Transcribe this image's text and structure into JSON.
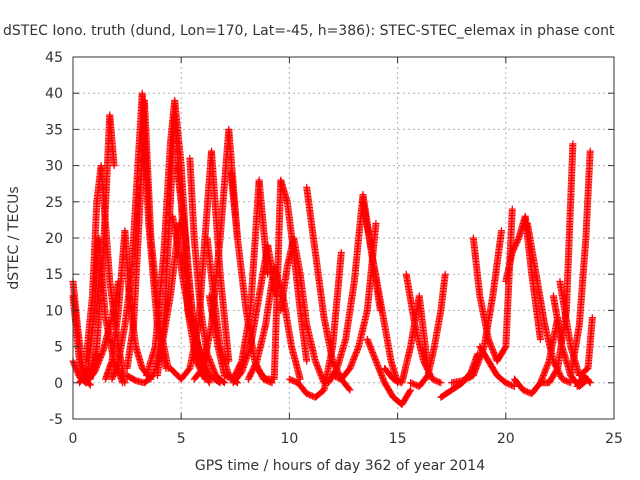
{
  "chart_data": {
    "type": "scatter",
    "title": "dSTEC Iono. truth (dund, Lon=170, Lat=-45, h=386): STEC-STEC_elemax in phase cont",
    "xlabel": "GPS time / hours of day 362 of year 2014",
    "ylabel": "dSTEC  / TECUs",
    "xlim": [
      0,
      25
    ],
    "ylim": [
      -5,
      45
    ],
    "xticks": [
      0,
      5,
      10,
      15,
      20,
      25
    ],
    "yticks": [
      -5,
      0,
      5,
      10,
      15,
      20,
      25,
      30,
      35,
      40,
      45
    ],
    "grid": true,
    "marker": "plus",
    "color": "#ff0000",
    "series": [
      {
        "x": [
          0.0,
          0.2,
          0.4,
          0.6,
          0.8
        ],
        "y": [
          14.0,
          8.0,
          3.0,
          0.3,
          -0.3
        ]
      },
      {
        "x": [
          0.0,
          0.3,
          0.6,
          0.9,
          1.1
        ],
        "y": [
          3.0,
          0.8,
          0.0,
          1.5,
          4.0
        ]
      },
      {
        "x": [
          0.0,
          0.3,
          0.6,
          1.0,
          1.4,
          1.8,
          2.1
        ],
        "y": [
          12.0,
          3.0,
          0.0,
          1.5,
          4.5,
          9.0,
          14.0
        ]
      },
      {
        "x": [
          0.3,
          0.7,
          1.0,
          1.2,
          1.5,
          1.9,
          2.3
        ],
        "y": [
          0.0,
          2.0,
          10.0,
          20.0,
          9.0,
          3.0,
          0.0
        ]
      },
      {
        "x": [
          0.6,
          0.9,
          1.1,
          1.3,
          1.7,
          2.1,
          2.4
        ],
        "y": [
          3.0,
          12.0,
          25.0,
          30.0,
          14.0,
          5.0,
          0.0
        ]
      },
      {
        "x": [
          0.8,
          1.1,
          1.4,
          1.7,
          1.9
        ],
        "y": [
          0.5,
          5.0,
          18.0,
          37.0,
          30.0
        ]
      },
      {
        "x": [
          1.5,
          1.8,
          2.1,
          2.4,
          2.6,
          2.9,
          3.2,
          3.6
        ],
        "y": [
          0.5,
          3.0,
          10.0,
          21.0,
          12.0,
          5.0,
          2.0,
          0.5
        ]
      },
      {
        "x": [
          1.8,
          2.1,
          2.4,
          2.7,
          3.0,
          3.2,
          3.5,
          3.9,
          4.3
        ],
        "y": [
          0.5,
          3.0,
          8.0,
          15.0,
          30.0,
          40.0,
          22.0,
          8.0,
          2.0
        ]
      },
      {
        "x": [
          2.5,
          2.8,
          3.1,
          3.3,
          3.6,
          4.0,
          4.4
        ],
        "y": [
          2.0,
          8.0,
          25.0,
          39.0,
          20.0,
          8.0,
          2.0
        ]
      },
      {
        "x": [
          2.5,
          2.9,
          3.3,
          3.7,
          4.1,
          4.5,
          4.9
        ],
        "y": [
          1.0,
          0.3,
          0.0,
          1.0,
          5.0,
          12.0,
          22.0
        ]
      },
      {
        "x": [
          3.4,
          3.8,
          4.2,
          4.5,
          4.7,
          5.0,
          5.3,
          5.7,
          6.0
        ],
        "y": [
          1.0,
          5.0,
          18.0,
          33.0,
          39.0,
          30.0,
          15.0,
          5.0,
          1.0
        ]
      },
      {
        "x": [
          3.9,
          4.2,
          4.5,
          4.7,
          5.0,
          5.3,
          5.7,
          6.1
        ],
        "y": [
          1.0,
          8.0,
          25.0,
          37.0,
          25.0,
          10.0,
          3.0,
          0.5
        ]
      },
      {
        "x": [
          4.6,
          4.9,
          5.1,
          5.4,
          5.8,
          6.3,
          6.8
        ],
        "y": [
          23.0,
          18.0,
          14.0,
          9.0,
          5.0,
          1.0,
          0.0
        ]
      },
      {
        "x": [
          4.8,
          5.2,
          5.5,
          5.9,
          6.3
        ],
        "y": [
          30.0,
          20.0,
          10.0,
          3.0,
          0.0
        ]
      },
      {
        "x": [
          4.5,
          5.0,
          5.4,
          5.8,
          6.1,
          6.4,
          6.8,
          7.2
        ],
        "y": [
          2.0,
          0.5,
          2.0,
          8.0,
          20.0,
          32.0,
          15.0,
          3.0
        ]
      },
      {
        "x": [
          5.4,
          5.6,
          5.9,
          6.2,
          6.6,
          7.0
        ],
        "y": [
          31.0,
          20.0,
          10.0,
          4.0,
          1.0,
          0.0
        ]
      },
      {
        "x": [
          5.6,
          6.0,
          6.4,
          6.8,
          7.2,
          7.6
        ],
        "y": [
          0.5,
          2.0,
          8.0,
          20.0,
          35.0,
          20.0
        ]
      },
      {
        "x": [
          6.2,
          6.5,
          6.8,
          7.2,
          7.6
        ],
        "y": [
          20.0,
          12.0,
          5.0,
          1.0,
          0.0
        ]
      },
      {
        "x": [
          6.3,
          6.7,
          7.0,
          7.4,
          7.8,
          8.2,
          8.6,
          9.0
        ],
        "y": [
          12.0,
          5.0,
          1.0,
          0.5,
          3.0,
          10.0,
          28.0,
          15.0
        ]
      },
      {
        "x": [
          7.3,
          7.6,
          8.0,
          8.4,
          8.8,
          9.2
        ],
        "y": [
          29.0,
          20.0,
          10.0,
          3.0,
          0.5,
          0.0
        ]
      },
      {
        "x": [
          7.4,
          7.8,
          8.2,
          8.6,
          9.0,
          9.4
        ],
        "y": [
          0.0,
          1.5,
          5.0,
          12.0,
          19.0,
          12.0
        ]
      },
      {
        "x": [
          8.1,
          8.5,
          8.9,
          9.3,
          9.7,
          10.1,
          10.5
        ],
        "y": [
          0.5,
          3.0,
          8.0,
          16.0,
          12.0,
          5.0,
          0.5
        ]
      },
      {
        "x": [
          8.5,
          8.9,
          9.3,
          9.6,
          9.9,
          10.2,
          10.5,
          10.8
        ],
        "y": [
          2.0,
          0.5,
          0.5,
          28.0,
          25.0,
          18.0,
          10.0,
          3.0
        ]
      },
      {
        "x": [
          9.6,
          9.9,
          10.2,
          10.5,
          10.8,
          11.2,
          11.6
        ],
        "y": [
          10.0,
          16.0,
          20.0,
          15.0,
          8.0,
          3.0,
          0.0
        ]
      },
      {
        "x": [
          10.0,
          10.4,
          10.8,
          11.2,
          11.6,
          12.0,
          12.4
        ],
        "y": [
          0.5,
          0.0,
          -1.5,
          -2.0,
          -1.0,
          5.0,
          18.0
        ]
      },
      {
        "x": [
          10.8,
          11.2,
          11.6,
          12.0,
          12.4,
          12.8
        ],
        "y": [
          27.0,
          18.0,
          9.0,
          3.0,
          0.5,
          -1.0
        ]
      },
      {
        "x": [
          11.8,
          12.2,
          12.6,
          13.0,
          13.4,
          13.8,
          14.2
        ],
        "y": [
          0.0,
          2.0,
          6.0,
          14.0,
          26.0,
          18.0,
          10.0
        ]
      },
      {
        "x": [
          12.0,
          12.4,
          12.8,
          13.2,
          13.6,
          14.0
        ],
        "y": [
          1.0,
          0.5,
          2.0,
          5.0,
          10.0,
          22.0
        ]
      },
      {
        "x": [
          13.4,
          13.8,
          14.1,
          14.4,
          14.7,
          15.0
        ],
        "y": [
          25.0,
          18.0,
          13.0,
          8.0,
          3.0,
          0.0
        ]
      },
      {
        "x": [
          13.6,
          14.0,
          14.4,
          14.8,
          15.2,
          15.6
        ],
        "y": [
          6.0,
          3.0,
          0.0,
          -2.0,
          -3.0,
          -1.0
        ]
      },
      {
        "x": [
          14.4,
          14.8,
          15.2,
          15.6,
          16.0,
          16.4
        ],
        "y": [
          2.0,
          0.5,
          0.0,
          5.0,
          12.0,
          2.0
        ]
      },
      {
        "x": [
          15.4,
          15.8,
          16.2,
          16.6,
          17.0
        ],
        "y": [
          15.0,
          8.0,
          3.0,
          0.5,
          0.0
        ]
      },
      {
        "x": [
          15.6,
          16.0,
          16.4,
          16.7,
          17.0,
          17.2
        ],
        "y": [
          0.0,
          -0.5,
          1.0,
          5.0,
          10.0,
          15.0
        ]
      },
      {
        "x": [
          17.0,
          17.5,
          18.0,
          18.4,
          18.7
        ],
        "y": [
          -2.0,
          -1.0,
          0.0,
          1.5,
          4.0
        ]
      },
      {
        "x": [
          17.5,
          18.0,
          18.5,
          19.0,
          19.4,
          19.8
        ],
        "y": [
          0.0,
          0.3,
          1.0,
          5.0,
          12.0,
          21.0
        ]
      },
      {
        "x": [
          18.5,
          18.8,
          19.2,
          19.6,
          20.0,
          20.3
        ],
        "y": [
          20.0,
          12.0,
          6.0,
          3.0,
          5.0,
          24.0
        ]
      },
      {
        "x": [
          18.8,
          19.2,
          19.6,
          20.0,
          20.4
        ],
        "y": [
          5.0,
          3.0,
          1.0,
          0.0,
          -0.5
        ]
      },
      {
        "x": [
          20.0,
          20.3,
          20.6,
          20.9,
          21.2,
          21.6
        ],
        "y": [
          14.0,
          18.0,
          20.0,
          23.0,
          15.0,
          6.0
        ]
      },
      {
        "x": [
          20.4,
          20.8,
          21.2,
          21.6,
          22.0,
          22.4
        ],
        "y": [
          0.5,
          -1.0,
          -1.5,
          0.0,
          3.0,
          9.0
        ]
      },
      {
        "x": [
          21.0,
          21.4,
          21.8,
          22.2,
          22.6,
          23.0
        ],
        "y": [
          22.0,
          15.0,
          8.0,
          3.0,
          0.5,
          0.0
        ]
      },
      {
        "x": [
          21.6,
          22.0,
          22.4,
          22.8,
          23.1
        ],
        "y": [
          0.0,
          0.0,
          2.0,
          10.0,
          33.0
        ]
      },
      {
        "x": [
          22.2,
          22.6,
          23.0,
          23.4,
          23.8
        ],
        "y": [
          12.0,
          5.0,
          1.0,
          -0.5,
          0.5
        ]
      },
      {
        "x": [
          23.0,
          23.4,
          23.7,
          23.9
        ],
        "y": [
          1.0,
          8.0,
          20.0,
          32.0
        ]
      },
      {
        "x": [
          22.5,
          23.0,
          23.4,
          23.8,
          24.0
        ],
        "y": [
          14.0,
          5.0,
          1.0,
          2.0,
          9.0
        ]
      },
      {
        "x": [
          23.3,
          23.6,
          23.9
        ],
        "y": [
          -0.5,
          1.0,
          0.0
        ]
      }
    ]
  }
}
